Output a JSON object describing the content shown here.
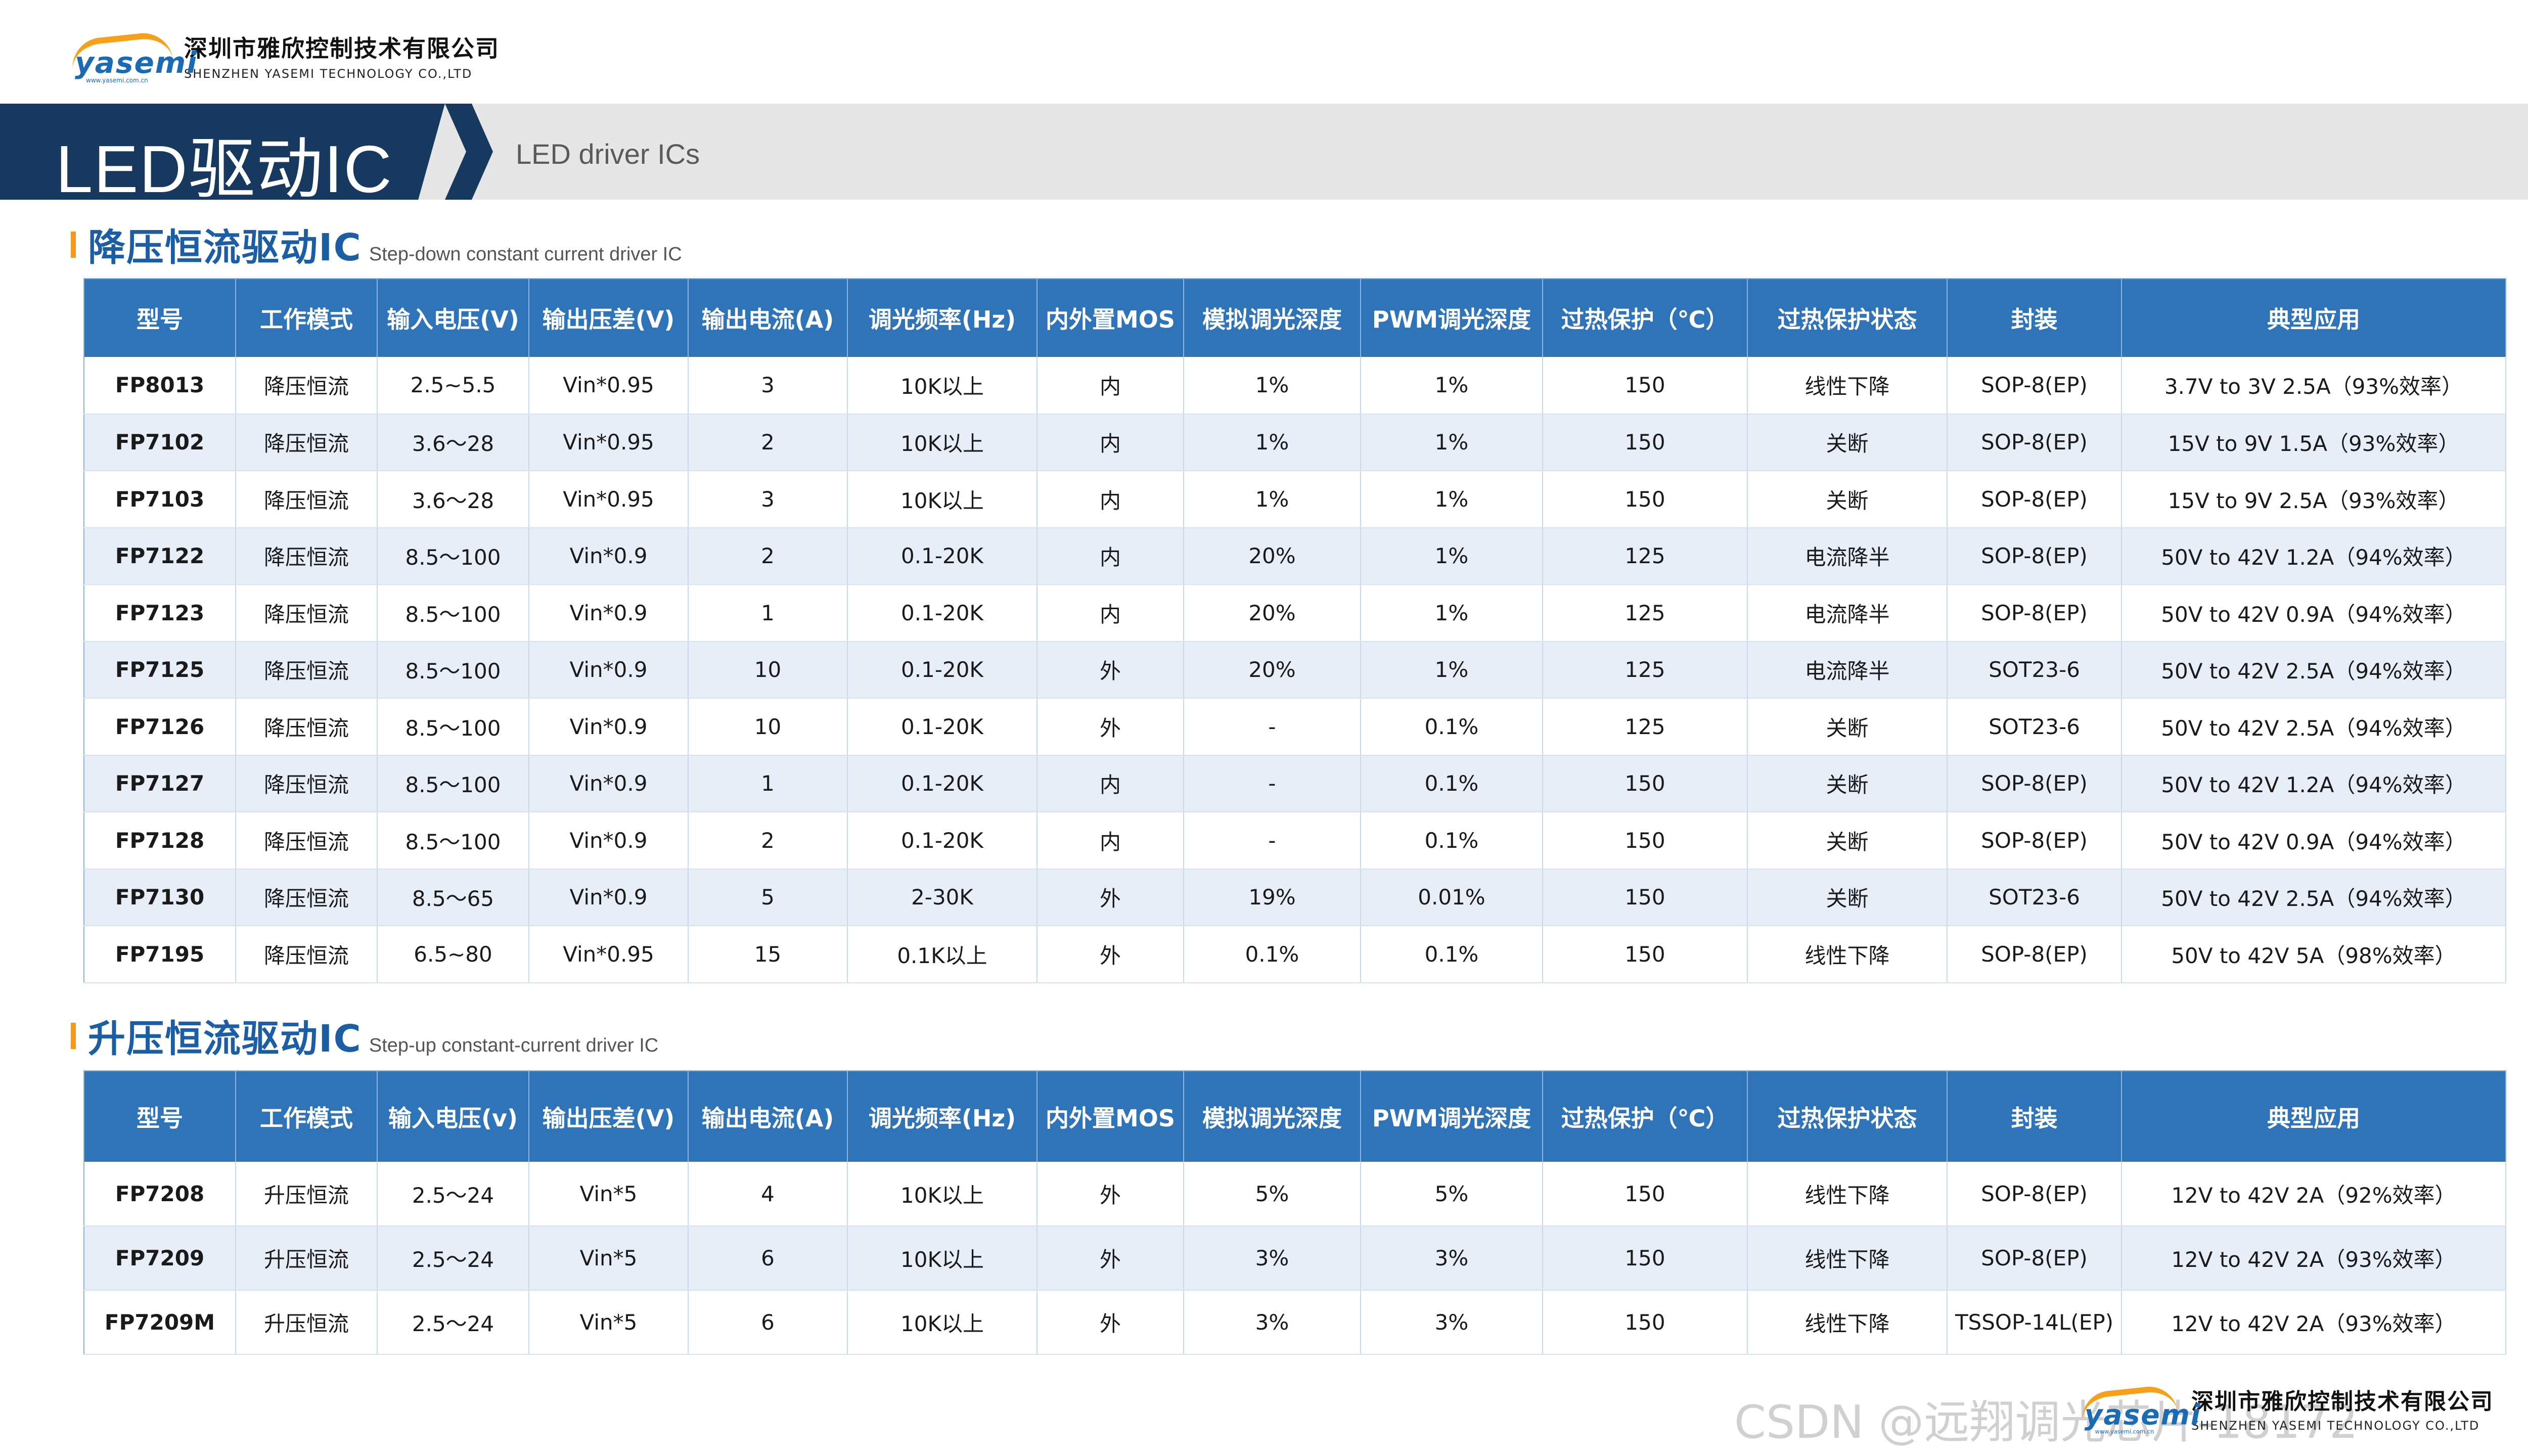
{
  "company": {
    "logo_text": "yasemi",
    "logo_tiny": "www.yasemi.com.cn",
    "name_cn": "深圳市雅欣控制技术有限公司",
    "name_en": "SHENZHEN YASEMI TECHNOLOGY CO.,LTD"
  },
  "banner": {
    "title": "LED驱动IC",
    "subtitle": "LED driver ICs"
  },
  "section1": {
    "title_cn": "降压恒流驱动IC",
    "title_en": "Step-down constant current driver IC",
    "headers": [
      "型号",
      "工作模式",
      "输入电压(V)",
      "输出压差(V)",
      "输出电流(A)",
      "调光频率(Hz)",
      "内外置MOS",
      "模拟调光深度",
      "PWM调光深度",
      "过热保护（℃）",
      "过热保护状态",
      "封装",
      "典型应用"
    ],
    "rows": [
      [
        "FP8013",
        "降压恒流",
        "2.5~5.5",
        "Vin*0.95",
        "3",
        "10K以上",
        "内",
        "1%",
        "1%",
        "150",
        "线性下降",
        "SOP-8(EP)",
        "3.7V to 3V 2.5A（93%效率）"
      ],
      [
        "FP7102",
        "降压恒流",
        "3.6～28",
        "Vin*0.95",
        "2",
        "10K以上",
        "内",
        "1%",
        "1%",
        "150",
        "关断",
        "SOP-8(EP)",
        "15V to 9V 1.5A（93%效率）"
      ],
      [
        "FP7103",
        "降压恒流",
        "3.6～28",
        "Vin*0.95",
        "3",
        "10K以上",
        "内",
        "1%",
        "1%",
        "150",
        "关断",
        "SOP-8(EP)",
        "15V to 9V 2.5A（93%效率）"
      ],
      [
        "FP7122",
        "降压恒流",
        "8.5～100",
        "Vin*0.9",
        "2",
        "0.1-20K",
        "内",
        "20%",
        "1%",
        "125",
        "电流降半",
        "SOP-8(EP)",
        "50V to 42V 1.2A（94%效率）"
      ],
      [
        "FP7123",
        "降压恒流",
        "8.5～100",
        "Vin*0.9",
        "1",
        "0.1-20K",
        "内",
        "20%",
        "1%",
        "125",
        "电流降半",
        "SOP-8(EP)",
        "50V to 42V 0.9A（94%效率）"
      ],
      [
        "FP7125",
        "降压恒流",
        "8.5～100",
        "Vin*0.9",
        "10",
        "0.1-20K",
        "外",
        "20%",
        "1%",
        "125",
        "电流降半",
        "SOT23-6",
        "50V to 42V 2.5A（94%效率）"
      ],
      [
        "FP7126",
        "降压恒流",
        "8.5～100",
        "Vin*0.9",
        "10",
        "0.1-20K",
        "外",
        "-",
        "0.1%",
        "125",
        "关断",
        "SOT23-6",
        "50V to 42V 2.5A（94%效率）"
      ],
      [
        "FP7127",
        "降压恒流",
        "8.5～100",
        "Vin*0.9",
        "1",
        "0.1-20K",
        "内",
        "-",
        "0.1%",
        "150",
        "关断",
        "SOP-8(EP)",
        "50V to 42V 1.2A（94%效率）"
      ],
      [
        "FP7128",
        "降压恒流",
        "8.5～100",
        "Vin*0.9",
        "2",
        "0.1-20K",
        "内",
        "-",
        "0.1%",
        "150",
        "关断",
        "SOP-8(EP)",
        "50V to 42V 0.9A（94%效率）"
      ],
      [
        "FP7130",
        "降压恒流",
        "8.5～65",
        "Vin*0.9",
        "5",
        "2-30K",
        "外",
        "19%",
        "0.01%",
        "150",
        "关断",
        "SOT23-6",
        "50V to 42V 2.5A（94%效率）"
      ],
      [
        "FP7195",
        "降压恒流",
        "6.5~80",
        "Vin*0.95",
        "15",
        "0.1K以上",
        "外",
        "0.1%",
        "0.1%",
        "150",
        "线性下降",
        "SOP-8(EP)",
        "50V to 42V 5A（98%效率）"
      ]
    ]
  },
  "section2": {
    "title_cn": "升压恒流驱动IC",
    "title_en": "Step-up constant-current driver IC",
    "headers": [
      "型号",
      "工作模式",
      "输入电压(v)",
      "输出压差(V)",
      "输出电流(A)",
      "调光频率(Hz)",
      "内外置MOS",
      "模拟调光深度",
      "PWM调光深度",
      "过热保护（℃）",
      "过热保护状态",
      "封装",
      "典型应用"
    ],
    "rows": [
      [
        "FP7208",
        "升压恒流",
        "2.5～24",
        "Vin*5",
        "4",
        "10K以上",
        "外",
        "5%",
        "5%",
        "150",
        "线性下降",
        "SOP-8(EP)",
        "12V to 42V 2A（92%效率）"
      ],
      [
        "FP7209",
        "升压恒流",
        "2.5～24",
        "Vin*5",
        "6",
        "10K以上",
        "外",
        "3%",
        "3%",
        "150",
        "线性下降",
        "SOP-8(EP)",
        "12V to 42V 2A（93%效率）"
      ],
      [
        "FP7209M",
        "升压恒流",
        "2.5～24",
        "Vin*5",
        "6",
        "10K以上",
        "外",
        "3%",
        "3%",
        "150",
        "线性下降",
        "TSSOP-14L(EP)",
        "12V to 42V 2A（93%效率）"
      ]
    ]
  },
  "watermark": "CSDN @远翔调光芯片-18172"
}
